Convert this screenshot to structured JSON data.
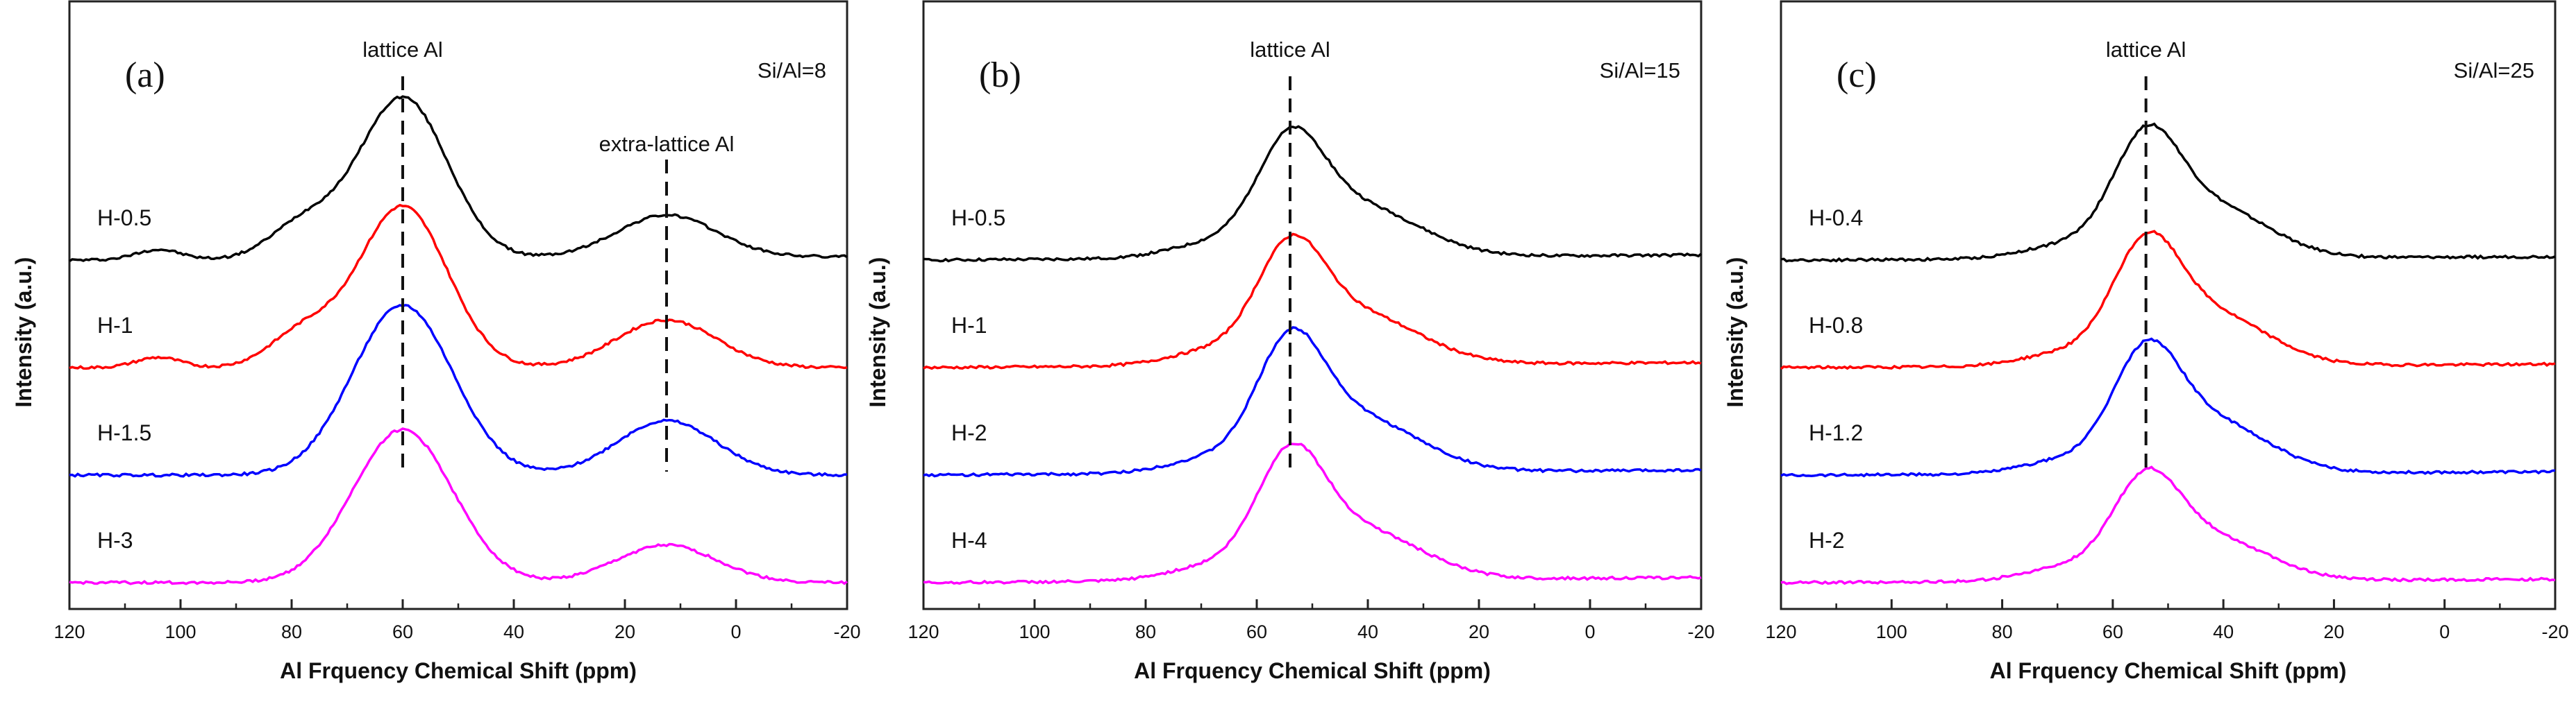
{
  "chart_data": [
    {
      "type": "line",
      "panel_label": "(a)",
      "ratio_label": "Si/Al=8",
      "xlabel": "Al Frquency Chemical Shift (ppm)",
      "ylabel": "Intensity (a.u.)",
      "xlim": [
        120,
        -20
      ],
      "xticks": [
        "120",
        "100",
        "80",
        "60",
        "40",
        "20",
        "0",
        "-20"
      ],
      "y_ticks_shown": false,
      "annotations": [
        {
          "text": "lattice Al",
          "x": 60,
          "dashed_line": true
        },
        {
          "text": "extra-lattice Al",
          "x": 12.5,
          "dashed_line": true
        }
      ],
      "series": [
        {
          "name": "H-0.5",
          "color": "#000000",
          "offset": 3,
          "peaks": [
            [
              104,
              0.06,
              4
            ],
            [
              78,
              0.2,
              6
            ],
            [
              60,
              0.95,
              8
            ],
            [
              12.5,
              0.25,
              9
            ]
          ],
          "base_left": 0.0,
          "base_right": 0.02
        },
        {
          "name": "H-1",
          "color": "#ff0000",
          "offset": 2,
          "peaks": [
            [
              104,
              0.06,
              4
            ],
            [
              78,
              0.2,
              6
            ],
            [
              60,
              0.95,
              8
            ],
            [
              12.5,
              0.28,
              9
            ]
          ],
          "base_left": 0.0,
          "base_right": 0.0
        },
        {
          "name": "H-1.5",
          "color": "#0000ff",
          "offset": 1,
          "peaks": [
            [
              60,
              1.0,
              9
            ],
            [
              12.5,
              0.32,
              9
            ]
          ],
          "base_left": 0.0,
          "base_right": 0.0
        },
        {
          "name": "H-3",
          "color": "#ff00ff",
          "offset": 0,
          "peaks": [
            [
              60,
              0.9,
              9
            ],
            [
              12.5,
              0.22,
              9
            ]
          ],
          "base_left": 0.0,
          "base_right": 0.0
        }
      ]
    },
    {
      "type": "line",
      "panel_label": "(b)",
      "ratio_label": "Si/Al=15",
      "xlabel": "Al Frquency Chemical Shift (ppm)",
      "ylabel": "Intensity (a.u.)",
      "xlim": [
        120,
        -20
      ],
      "xticks": [
        "120",
        "100",
        "80",
        "60",
        "40",
        "20",
        "0",
        "-20"
      ],
      "y_ticks_shown": false,
      "annotations": [
        {
          "text": "lattice Al",
          "x": 54,
          "dashed_line": true
        }
      ],
      "series": [
        {
          "name": "H-0.5",
          "color": "#000000",
          "offset": 3,
          "peaks": [
            [
              54,
              0.58,
              6
            ],
            [
              42,
              0.3,
              11
            ],
            [
              68,
              0.08,
              8
            ]
          ],
          "base_left": 0.0,
          "base_right": 0.03
        },
        {
          "name": "H-1",
          "color": "#ff0000",
          "offset": 2,
          "peaks": [
            [
              54,
              0.58,
              6
            ],
            [
              42,
              0.3,
              11
            ],
            [
              68,
              0.08,
              8
            ]
          ],
          "base_left": 0.0,
          "base_right": 0.03
        },
        {
          "name": "H-2",
          "color": "#0000ff",
          "offset": 1,
          "peaks": [
            [
              54,
              0.65,
              6
            ],
            [
              42,
              0.32,
              11
            ],
            [
              68,
              0.08,
              8
            ]
          ],
          "base_left": 0.0,
          "base_right": 0.03
        },
        {
          "name": "H-4",
          "color": "#ff00ff",
          "offset": 0,
          "peaks": [
            [
              54,
              0.62,
              6
            ],
            [
              42,
              0.3,
              11
            ],
            [
              68,
              0.08,
              8
            ]
          ],
          "base_left": 0.0,
          "base_right": 0.03
        }
      ]
    },
    {
      "type": "line",
      "panel_label": "(c)",
      "ratio_label": "Si/Al=25",
      "xlabel": "Al Frquency Chemical Shift (ppm)",
      "ylabel": "Intensity (a.u.)",
      "xlim": [
        120,
        -20
      ],
      "xticks": [
        "120",
        "100",
        "80",
        "60",
        "40",
        "20",
        "0",
        "-20"
      ],
      "y_ticks_shown": false,
      "annotations": [
        {
          "text": "lattice Al",
          "x": 54,
          "dashed_line": true
        }
      ],
      "series": [
        {
          "name": "H-0.4",
          "color": "#000000",
          "offset": 3,
          "peaks": [
            [
              54,
              0.62,
              6
            ],
            [
              42,
              0.3,
              10
            ],
            [
              68,
              0.08,
              8
            ]
          ],
          "base_left": 0.0,
          "base_right": 0.02
        },
        {
          "name": "H-0.8",
          "color": "#ff0000",
          "offset": 2,
          "peaks": [
            [
              54,
              0.62,
              6
            ],
            [
              42,
              0.3,
              10
            ],
            [
              68,
              0.08,
              8
            ]
          ],
          "base_left": 0.0,
          "base_right": 0.02
        },
        {
          "name": "H-1.2",
          "color": "#0000ff",
          "offset": 1,
          "peaks": [
            [
              54,
              0.62,
              6
            ],
            [
              42,
              0.3,
              10
            ],
            [
              68,
              0.08,
              8
            ]
          ],
          "base_left": 0.0,
          "base_right": 0.02
        },
        {
          "name": "H-2",
          "color": "#ff00ff",
          "offset": 0,
          "peaks": [
            [
              54,
              0.52,
              6
            ],
            [
              42,
              0.25,
              10
            ],
            [
              68,
              0.08,
              8
            ]
          ],
          "base_left": 0.0,
          "base_right": 0.02
        }
      ]
    }
  ]
}
